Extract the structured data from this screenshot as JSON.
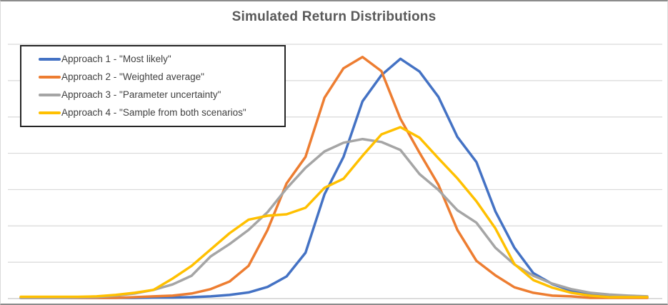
{
  "chart_data": {
    "type": "line",
    "title": "Simulated Return Distributions",
    "xlabel": "",
    "ylabel": "",
    "x_tick_labels_visible": false,
    "y_tick_labels_visible": false,
    "ylim": [
      0,
      7
    ],
    "gridlines": "horizontal",
    "gridline_count": 8,
    "legend_position": "top-left-inside",
    "background_color": "#FFFFFF",
    "gridline_color": "#D9D9D9",
    "axis_line_color": "#D0D0D0",
    "frame_border_color": "#8C8C8C",
    "legend_border_color": "#262626",
    "title_color": "#595959",
    "legend_text_color": "#404040",
    "series": [
      {
        "name": "Approach 1 - \"Most likely\"",
        "color": "#4472C4",
        "values": [
          0.02,
          0.02,
          0.02,
          0.02,
          0.02,
          0.02,
          0.02,
          0.03,
          0.03,
          0.04,
          0.06,
          0.1,
          0.17,
          0.32,
          0.61,
          1.26,
          2.87,
          3.9,
          5.43,
          6.15,
          6.6,
          6.25,
          5.55,
          4.45,
          3.76,
          2.4,
          1.4,
          0.7,
          0.4,
          0.22,
          0.12,
          0.06,
          0.04,
          0.04
        ]
      },
      {
        "name": "Approach 2 - \"Weighted average\"",
        "color": "#ED7D31",
        "values": [
          0.02,
          0.02,
          0.02,
          0.02,
          0.02,
          0.02,
          0.04,
          0.06,
          0.08,
          0.14,
          0.26,
          0.47,
          0.9,
          1.89,
          3.17,
          3.9,
          5.53,
          6.34,
          6.65,
          6.26,
          4.95,
          4.02,
          3.13,
          1.89,
          1.04,
          0.64,
          0.31,
          0.16,
          0.08,
          0.06,
          0.02,
          0.02,
          0.02,
          0.02
        ]
      },
      {
        "name": "Approach 3 - \"Parameter uncertainty\"",
        "color": "#A5A5A5",
        "values": [
          0.02,
          0.02,
          0.02,
          0.03,
          0.04,
          0.08,
          0.14,
          0.24,
          0.39,
          0.63,
          1.16,
          1.5,
          1.89,
          2.38,
          3.03,
          3.6,
          4.05,
          4.29,
          4.39,
          4.31,
          4.09,
          3.43,
          2.99,
          2.43,
          2.09,
          1.4,
          0.94,
          0.63,
          0.41,
          0.26,
          0.16,
          0.11,
          0.08,
          0.06
        ]
      },
      {
        "name": "Approach 4 - \"Sample from both scenarios\"",
        "color": "#FFC000",
        "values": [
          0.05,
          0.05,
          0.05,
          0.05,
          0.06,
          0.1,
          0.16,
          0.24,
          0.55,
          0.9,
          1.35,
          1.8,
          2.17,
          2.28,
          2.32,
          2.5,
          3.05,
          3.3,
          3.93,
          4.52,
          4.72,
          4.43,
          3.86,
          3.31,
          2.68,
          1.93,
          0.95,
          0.51,
          0.3,
          0.16,
          0.08,
          0.04,
          0.04,
          0.04
        ]
      }
    ]
  }
}
